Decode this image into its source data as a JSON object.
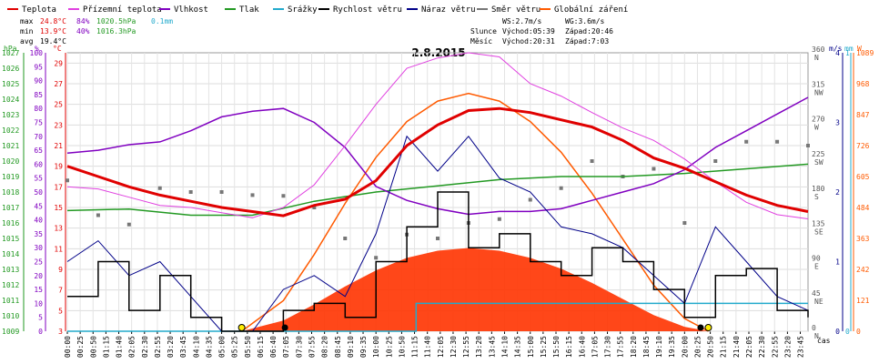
{
  "chart_data": {
    "type": "line",
    "title": "2.8.2015",
    "xlabel": "čas",
    "legend": [
      {
        "name": "Teplota",
        "color": "#e00000"
      },
      {
        "name": "Přízemní teplota",
        "color": "#e040e0"
      },
      {
        "name": "Vlhkost",
        "color": "#8000c0"
      },
      {
        "name": "Tlak",
        "color": "#229922"
      },
      {
        "name": "Srážky",
        "color": "#22aacc"
      },
      {
        "name": "Rychlost větru",
        "color": "#000000"
      },
      {
        "name": "Náraz větru",
        "color": "#000088"
      },
      {
        "name": "Směr větru",
        "color": "#777777"
      },
      {
        "name": "Globální záření",
        "color": "#ff5a00"
      }
    ],
    "stats": {
      "max_label": "max",
      "max_temp": "24.8°C",
      "max_hum": "84%",
      "max_press": "1020.5hPa",
      "rain": "0.1mm",
      "min_label": "min",
      "min_temp": "13.9°C",
      "min_hum": "40%",
      "min_press": "1016.3hPa",
      "avg_label": "avg",
      "avg_temp": "19.4°C"
    },
    "info": {
      "ws": "WS:2.7m/s",
      "wg": "WG:3.6m/s",
      "sun_label": "Slunce",
      "sun_rise": "Východ:05:39",
      "sun_set": "Západ:20:46",
      "moon_label": "Měsíc",
      "moon_rise": "Východ:20:31",
      "moon_set": "Západ:7:03"
    },
    "axes": {
      "hpa": {
        "unit": "hPa",
        "ticks": [
          "1009",
          "1010",
          "1011",
          "1012",
          "1013",
          "1014",
          "1015",
          "1016",
          "1017",
          "1018",
          "1019",
          "1020",
          "1021",
          "1022",
          "1023",
          "1024",
          "1025",
          "1026",
          "1027"
        ]
      },
      "pct": {
        "unit": "%",
        "ticks": [
          "0",
          "5",
          "10",
          "15",
          "20",
          "25",
          "30",
          "35",
          "40",
          "45",
          "50",
          "55",
          "60",
          "65",
          "70",
          "75",
          "80",
          "85",
          "90",
          "95",
          "100"
        ]
      },
      "degc": {
        "unit": "°C",
        "range": [
          3,
          30
        ],
        "ticks": [
          "3",
          "5",
          "7",
          "9",
          "11",
          "13",
          "15",
          "17",
          "19",
          "21",
          "23",
          "25",
          "27",
          "29"
        ]
      },
      "dir": {
        "ticks": [
          {
            "v": "0",
            "l": "N"
          },
          {
            "v": "45",
            "l": "NE"
          },
          {
            "v": "90",
            "l": "E"
          },
          {
            "v": "135",
            "l": "SE"
          },
          {
            "v": "180",
            "l": "S"
          },
          {
            "v": "225",
            "l": "SW"
          },
          {
            "v": "270",
            "l": "W"
          },
          {
            "v": "315",
            "l": "NW"
          },
          {
            "v": "360",
            "l": "N"
          }
        ]
      },
      "ms": {
        "unit": "m/s",
        "ticks": [
          "0",
          "1",
          "2",
          "3",
          "4"
        ]
      },
      "mm": {
        "unit": "mm",
        "ticks": [
          "0",
          "1"
        ]
      },
      "w": {
        "unit": "W",
        "ticks": [
          "0",
          "121",
          "242",
          "363",
          "484",
          "605",
          "726",
          "847",
          "968",
          "1089"
        ]
      }
    },
    "x_ticks": [
      "00:00",
      "00:25",
      "00:50",
      "01:15",
      "01:40",
      "02:05",
      "02:30",
      "02:55",
      "03:20",
      "03:45",
      "04:10",
      "04:35",
      "05:00",
      "05:25",
      "05:50",
      "06:15",
      "06:40",
      "07:05",
      "07:30",
      "07:55",
      "08:20",
      "08:45",
      "09:10",
      "09:35",
      "10:00",
      "10:25",
      "10:50",
      "11:15",
      "11:40",
      "12:05",
      "12:30",
      "12:55",
      "13:20",
      "13:45",
      "14:10",
      "14:35",
      "15:00",
      "15:25",
      "15:50",
      "16:15",
      "16:40",
      "17:05",
      "17:30",
      "17:55",
      "18:20",
      "18:45",
      "19:10",
      "19:35",
      "20:00",
      "20:25",
      "20:50",
      "21:15",
      "21:40",
      "22:05",
      "22:30",
      "22:55",
      "23:20",
      "23:45"
    ],
    "series": [
      {
        "name": "Teplota",
        "x": [
          0,
          1,
          2,
          3,
          4,
          5,
          6,
          7,
          8,
          9,
          10,
          11,
          12,
          13,
          14,
          15,
          16,
          17,
          18,
          19,
          20,
          21,
          22,
          23,
          24
        ],
        "values": [
          19.0,
          18.0,
          17.0,
          16.2,
          15.6,
          15.0,
          14.6,
          14.2,
          15.2,
          15.8,
          17.6,
          21.0,
          23.0,
          24.4,
          24.6,
          24.2,
          23.5,
          22.8,
          21.5,
          19.8,
          18.8,
          17.5,
          16.2,
          15.2,
          14.6
        ]
      },
      {
        "name": "Přízemní teplota",
        "x": [
          0,
          1,
          2,
          3,
          4,
          5,
          6,
          7,
          8,
          9,
          10,
          11,
          12,
          13,
          14,
          15,
          16,
          17,
          18,
          19,
          20,
          21,
          22,
          23,
          24
        ],
        "values": [
          17.0,
          16.8,
          16.0,
          15.2,
          15.0,
          14.5,
          14.0,
          15.0,
          17.2,
          21.0,
          25.0,
          28.5,
          29.5,
          30.0,
          29.6,
          27.0,
          25.8,
          24.2,
          22.7,
          21.5,
          19.7,
          17.5,
          15.5,
          14.3,
          13.9
        ]
      },
      {
        "name": "Vlhkost",
        "x": [
          0,
          1,
          2,
          3,
          4,
          5,
          6,
          7,
          8,
          9,
          10,
          11,
          12,
          13,
          14,
          15,
          16,
          17,
          18,
          19,
          20,
          21,
          22,
          23,
          24
        ],
        "values": [
          64,
          65,
          67,
          68,
          72,
          77,
          79,
          80,
          75,
          66,
          52,
          47,
          44,
          42,
          43,
          43,
          44,
          47,
          50,
          53,
          58,
          66,
          72,
          78,
          84
        ]
      },
      {
        "name": "Tlak",
        "x": [
          0,
          2,
          4,
          6,
          8,
          10,
          12,
          14,
          16,
          18,
          20,
          22,
          24
        ],
        "values": [
          1016.8,
          1016.9,
          1016.5,
          1016.5,
          1017.4,
          1018.0,
          1018.4,
          1018.8,
          1019.0,
          1019.0,
          1019.2,
          1019.5,
          1019.8
        ]
      },
      {
        "name": "Srážky",
        "x": [
          0,
          11.3,
          11.3,
          24
        ],
        "values": [
          0,
          0,
          0.1,
          0.1
        ]
      },
      {
        "name": "Rychlost větru",
        "x": [
          0,
          1,
          2,
          3,
          4,
          5,
          6,
          7,
          8,
          9,
          10,
          11,
          12,
          13,
          14,
          15,
          16,
          17,
          18,
          19,
          20,
          21,
          22,
          23,
          24
        ],
        "values": [
          0.5,
          1.0,
          0.3,
          0.8,
          0.2,
          0,
          0,
          0.3,
          0.4,
          0.2,
          1.0,
          1.5,
          2.0,
          1.2,
          1.4,
          1.0,
          0.8,
          1.2,
          1.0,
          0.6,
          0.2,
          0.8,
          0.9,
          0.3,
          0.2
        ]
      },
      {
        "name": "Náraz větru",
        "x": [
          0,
          1,
          2,
          3,
          4,
          5,
          6,
          7,
          8,
          9,
          10,
          11,
          12,
          13,
          14,
          15,
          16,
          17,
          18,
          19,
          20,
          21,
          22,
          23,
          24
        ],
        "values": [
          1.0,
          1.3,
          0.8,
          1.0,
          0.5,
          0,
          0,
          0.6,
          0.8,
          0.5,
          1.4,
          2.8,
          2.3,
          2.8,
          2.2,
          2.0,
          1.5,
          1.4,
          1.2,
          0.8,
          0.4,
          1.5,
          1.0,
          0.5,
          0.3
        ]
      },
      {
        "name": "Směr větru",
        "x": [
          0,
          1,
          2,
          3,
          4,
          5,
          6,
          7,
          8,
          9,
          10,
          11,
          12,
          13,
          14,
          15,
          16,
          17,
          18,
          19,
          20,
          21,
          22,
          23,
          24
        ],
        "values": [
          195,
          150,
          138,
          185,
          180,
          180,
          176,
          175,
          160,
          120,
          95,
          125,
          120,
          140,
          145,
          170,
          185,
          220,
          200,
          210,
          140,
          220,
          245,
          245,
          240
        ]
      },
      {
        "name": "Globální záření",
        "x": [
          5.65,
          7,
          8,
          9,
          10,
          11,
          12,
          13,
          14,
          15,
          16,
          17,
          18,
          19,
          20,
          20.77
        ],
        "values": [
          0,
          120,
          300,
          500,
          680,
          820,
          900,
          930,
          900,
          820,
          700,
          540,
          360,
          180,
          50,
          0
        ]
      }
    ]
  }
}
